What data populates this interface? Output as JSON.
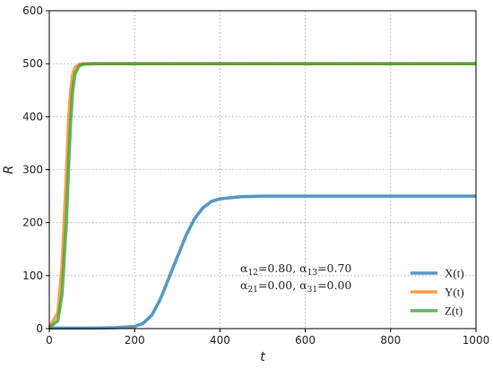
{
  "chart_data": {
    "type": "line",
    "title": "",
    "xlabel": "t",
    "ylabel": "R",
    "xlim": [
      0,
      1000
    ],
    "ylim": [
      0,
      600
    ],
    "xticks": [
      0,
      200,
      400,
      600,
      800,
      1000
    ],
    "yticks": [
      0,
      100,
      200,
      300,
      400,
      500,
      600
    ],
    "grid": true,
    "legend_position": "lower-right",
    "annotation": {
      "line1": {
        "a": "α",
        "a_sub": "12",
        "a_val": "=0.80, ",
        "b": "α",
        "b_sub": "13",
        "b_val": "=0.70"
      },
      "line2": {
        "a": "α",
        "a_sub": "21",
        "a_val": "=0.00, ",
        "b": "α",
        "b_sub": "31",
        "b_val": "=0.00"
      }
    },
    "x": [
      0,
      20,
      30,
      40,
      45,
      50,
      55,
      60,
      70,
      80,
      100,
      150,
      200,
      220,
      240,
      260,
      280,
      290,
      300,
      320,
      340,
      360,
      380,
      400,
      450,
      500,
      600,
      700,
      800,
      900,
      1000
    ],
    "series": [
      {
        "name": "X(t)",
        "color": "#1f77b4",
        "values": [
          1,
          1,
          1,
          1,
          1,
          1,
          1,
          1,
          1,
          1,
          1,
          1.5,
          4,
          10,
          25,
          55,
          95,
          115,
          135,
          175,
          207,
          228,
          240,
          245,
          249,
          250,
          250,
          250,
          250,
          250,
          250
        ]
      },
      {
        "name": "Y(t)",
        "color": "#ff7f0e",
        "values": [
          2,
          30,
          120,
          290,
          390,
          450,
          480,
          493,
          499,
          500,
          500,
          500,
          500,
          500,
          500,
          500,
          500,
          500,
          500,
          500,
          500,
          500,
          500,
          500,
          500,
          500,
          500,
          500,
          500,
          500,
          500
        ]
      },
      {
        "name": "Z(t)",
        "color": "#2ca02c",
        "values": [
          1.5,
          15,
          65,
          200,
          300,
          390,
          450,
          480,
          496,
          499,
          500,
          500,
          500,
          500,
          500,
          500,
          500,
          500,
          500,
          500,
          500,
          500,
          500,
          500,
          500,
          500,
          500,
          500,
          500,
          500,
          500
        ]
      }
    ]
  }
}
